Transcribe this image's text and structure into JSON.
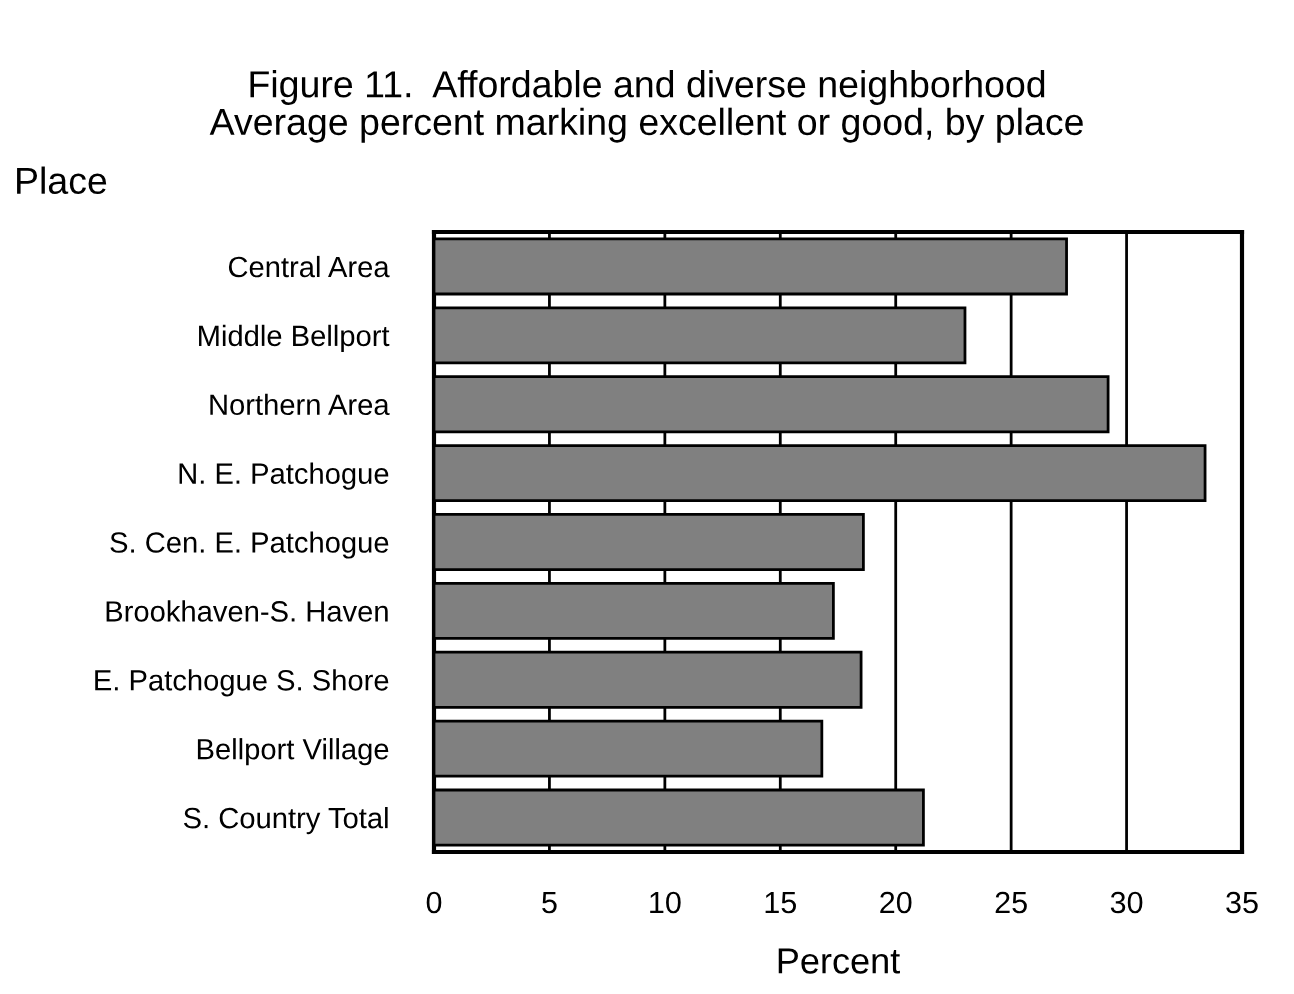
{
  "chart_data": {
    "type": "bar",
    "orientation": "horizontal",
    "title": "Figure 11.  Affordable and diverse neighborhood\nAverage percent marking excellent or good, by place",
    "ylabel": "Place",
    "xlabel": "Percent",
    "categories": [
      "Central Area",
      "Middle Bellport",
      "Northern Area",
      "N. E. Patchogue",
      "S. Cen. E. Patchogue",
      "Brookhaven-S. Haven",
      "E. Patchogue S. Shore",
      "Bellport Village",
      "S. Country Total"
    ],
    "values": [
      27.4,
      23.0,
      29.2,
      33.4,
      18.6,
      17.3,
      18.5,
      16.8,
      21.2
    ],
    "color": "#808080",
    "xlim": [
      0,
      35
    ],
    "xticks": [
      0,
      5,
      10,
      15,
      20,
      25,
      30,
      35
    ],
    "grid": "x"
  }
}
